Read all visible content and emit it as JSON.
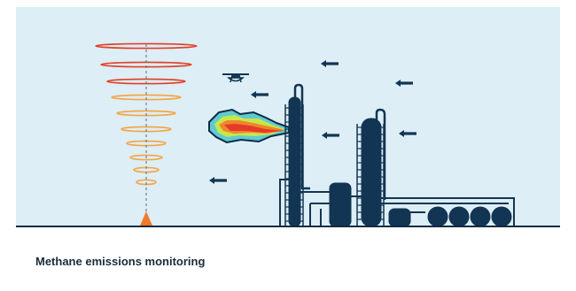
{
  "caption": "Methane emissions monitoring",
  "colors": {
    "sky": "#ddeef6",
    "ground": "#0f2a44",
    "structure": "#123553",
    "wind_arrow": "#123553",
    "plume_outline": "#0f2a44",
    "plume_outer": "#5ecbd3",
    "plume_mid": "#c8e64a",
    "plume_hot": "#f0852a",
    "plume_core": "#e53a2a",
    "source_marker": "#f07a2a",
    "ring_dark": "#e0402a",
    "ring_light": "#f3a545"
  },
  "icons": [
    "drone-icon",
    "wind-arrow-icon",
    "source-cone-icon",
    "helical-sampling-path"
  ]
}
